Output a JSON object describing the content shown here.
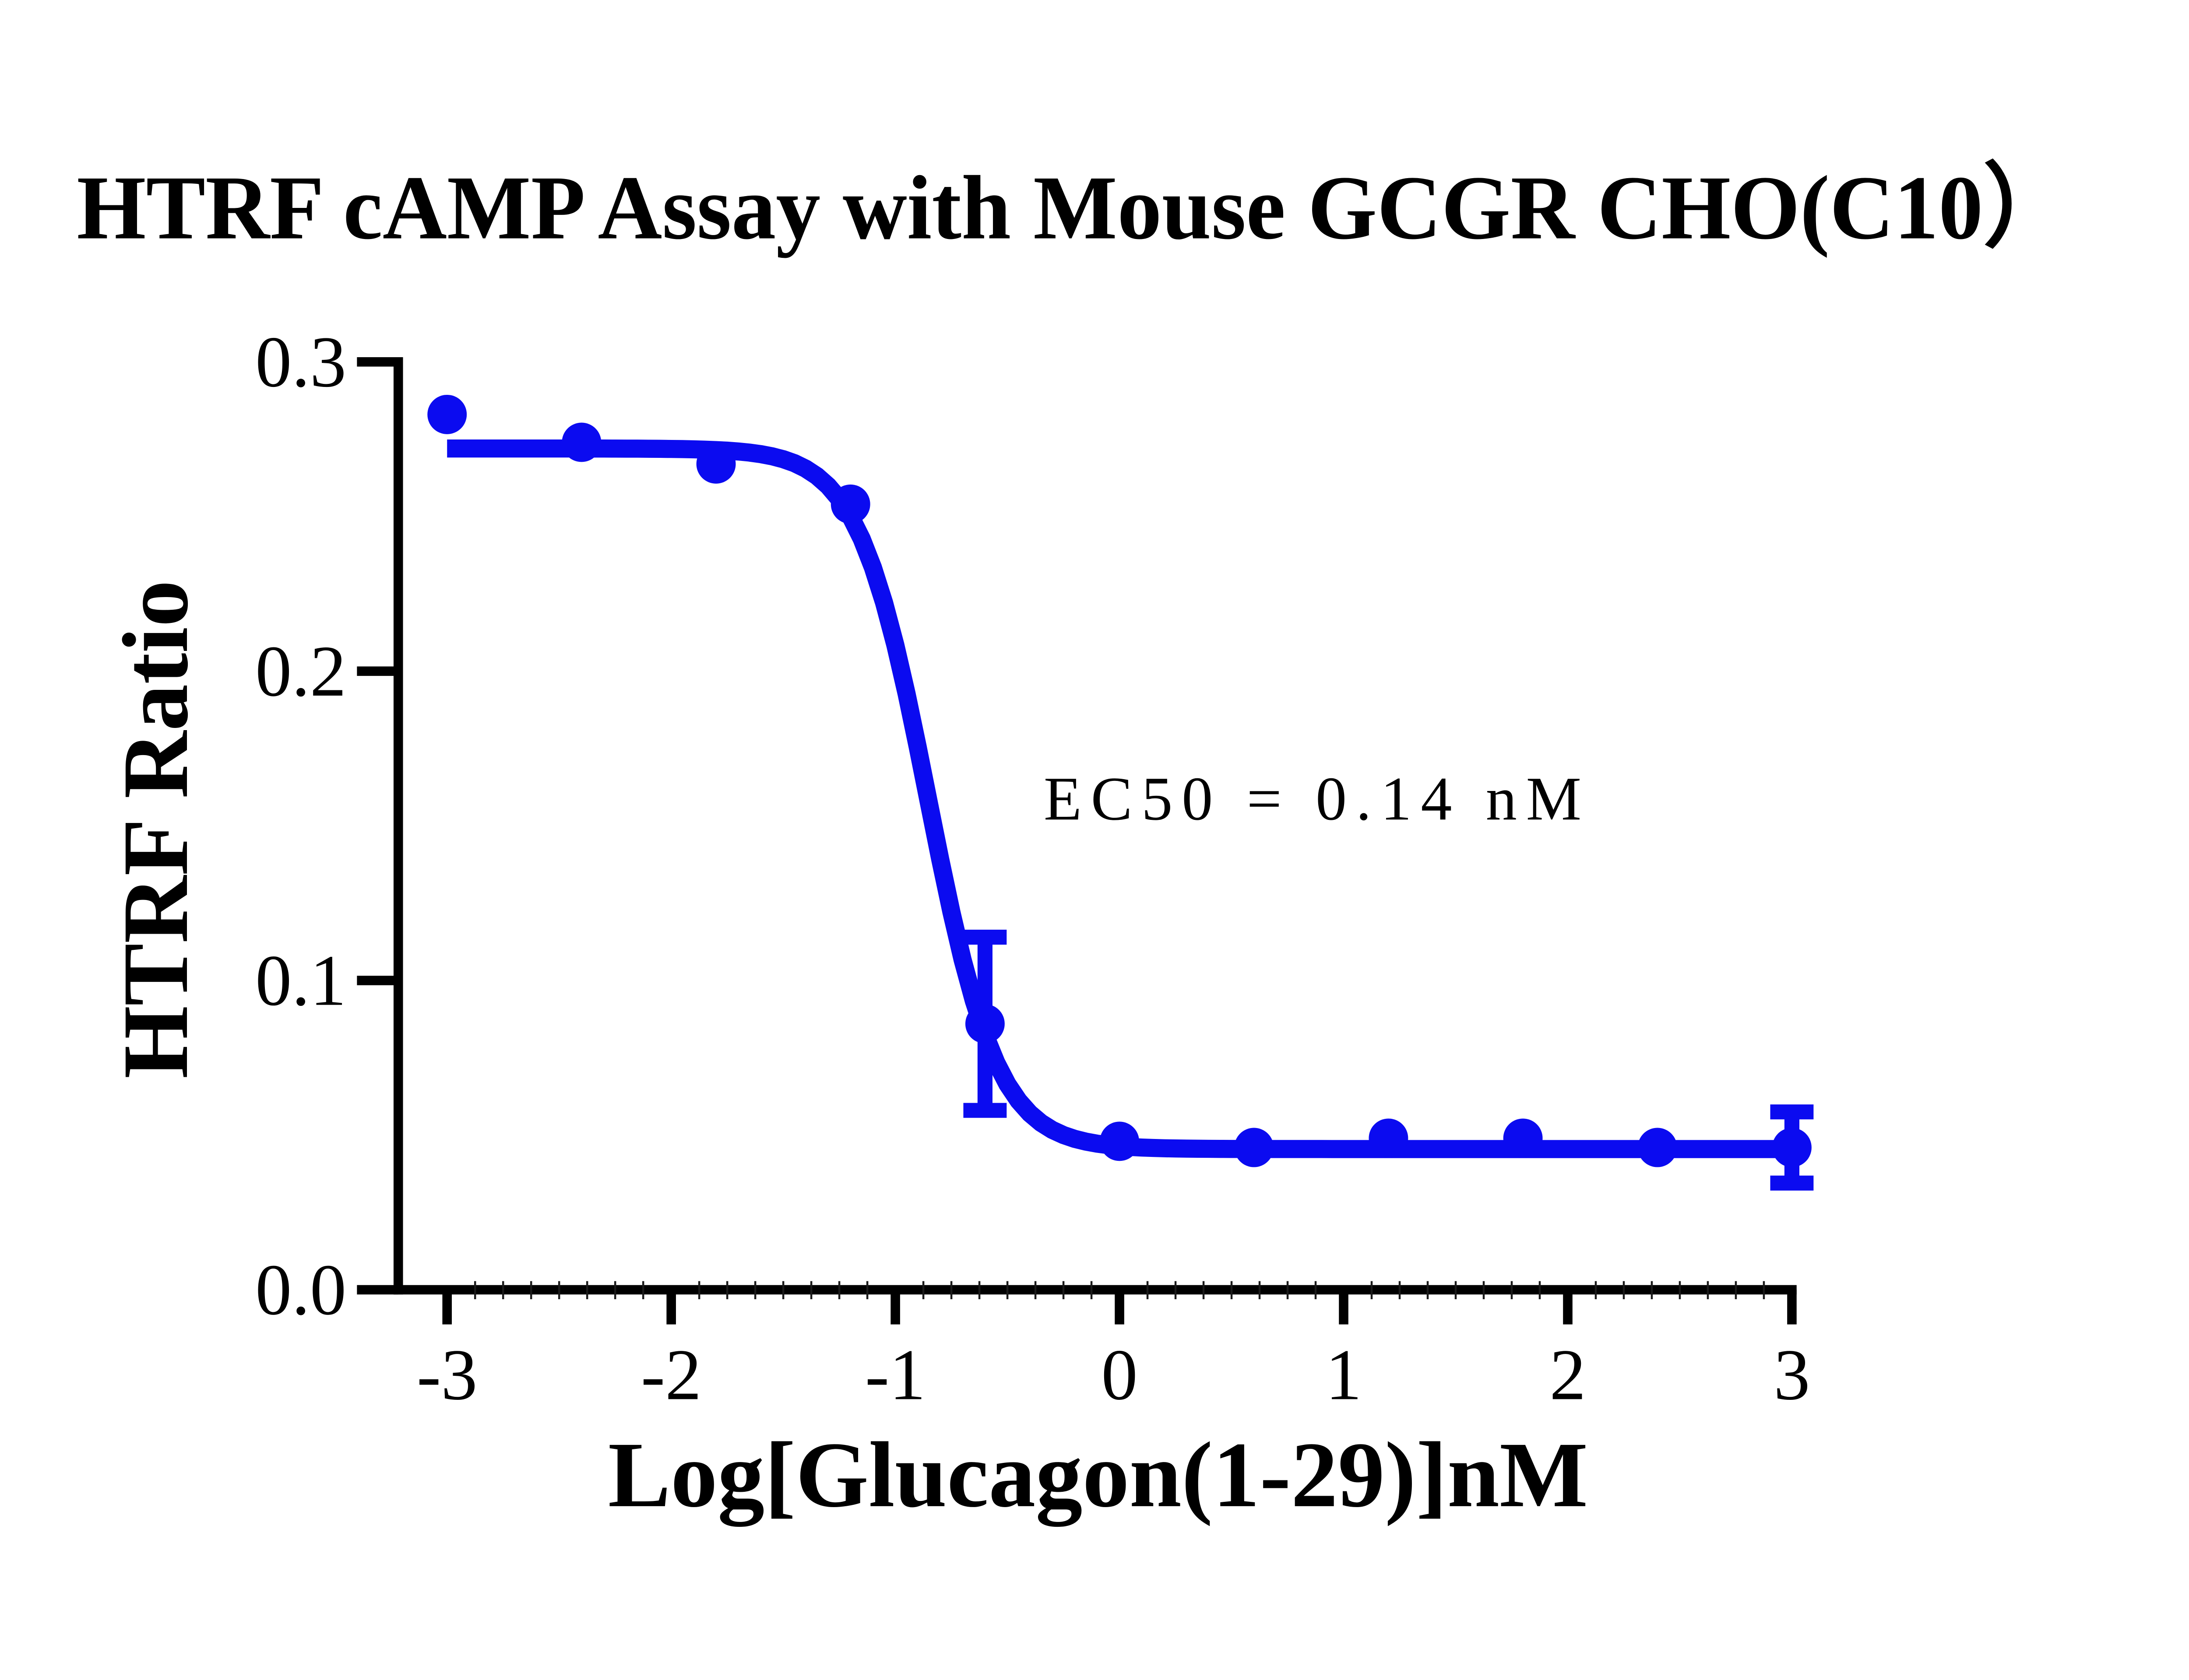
{
  "chart_data": {
    "type": "scatter",
    "title": "HTRF cAMP Assay with Mouse GCGR CHO(C10）",
    "xlabel": "Log[Glucagon(1-29)]nM",
    "ylabel": "HTRF Ratio",
    "annotation": "EC50 = 0.14 nM",
    "xlim": [
      -3,
      3
    ],
    "ylim": [
      0,
      0.3
    ],
    "grid": false,
    "legend": null,
    "x_tick_values": [
      -3,
      -2,
      -1,
      0,
      1,
      2,
      3
    ],
    "x_tick_labels": [
      "-3",
      "-2",
      "-1",
      "0",
      "1",
      "2",
      "3"
    ],
    "x_minor_divisions_per_unit": 8,
    "y_tick_values": [
      0,
      0.1,
      0.2,
      0.3
    ],
    "y_tick_labels": [
      "0.0",
      "0.1",
      "0.2",
      "0.3"
    ],
    "x": [
      -3,
      -2.4,
      -1.8,
      -1.2,
      -0.6,
      0,
      0.6,
      1.2,
      1.8,
      2.4,
      3
    ],
    "y": [
      0.283,
      0.274,
      0.267,
      0.254,
      0.086,
      0.048,
      0.046,
      0.049,
      0.049,
      0.046,
      0.046
    ],
    "sem": [
      null,
      null,
      null,
      null,
      0.028,
      null,
      null,
      null,
      null,
      null,
      0.0115
    ],
    "fit_curve": {
      "model": "4PL sigmoidal (log agonist vs response)",
      "top": 0.272,
      "bottom": 0.0455,
      "log_ec50": -0.854,
      "hill_slope": 2.8,
      "ec50_nM": 0.14
    },
    "colors": {
      "series": "#0b0bf0",
      "axis": "#000000",
      "text": "#000000",
      "background": "#ffffff"
    }
  }
}
